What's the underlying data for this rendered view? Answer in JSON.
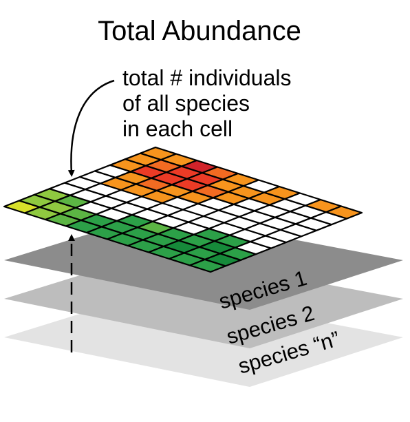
{
  "title": "Total Abundance",
  "annotation": {
    "lines": [
      "total # individuals",
      "of all species",
      "in each cell"
    ]
  },
  "layers": [
    {
      "label": "species 1",
      "color": "#8c8c8c"
    },
    {
      "label": "species 2",
      "color": "#bdbdbd"
    },
    {
      "label": "species “n”",
      "color": "#e3e3e3"
    }
  ],
  "grid": {
    "rows": 10,
    "cols": 10,
    "colors": {
      "W": "#ffffff",
      "Y": "#d8e02a",
      "L": "#8fc940",
      "M": "#5cb544",
      "G": "#2ca048",
      "D": "#168a3a",
      "O": "#f7941d",
      "P": "#f26b22",
      "R": "#ec3b26",
      "K": "#d1232a"
    },
    "cells": [
      "YLLWWWWOOO",
      "LLMWWOORPO",
      "MMWWWOPRRK",
      "GGWWWOORRP",
      "GGGWWWOPOO",
      "GGMWWWWOOW",
      "GGGWWWWWOO",
      "GDGGWWWWWW",
      "GGDGWWWWWO",
      "GDGWWWWWWO"
    ]
  }
}
